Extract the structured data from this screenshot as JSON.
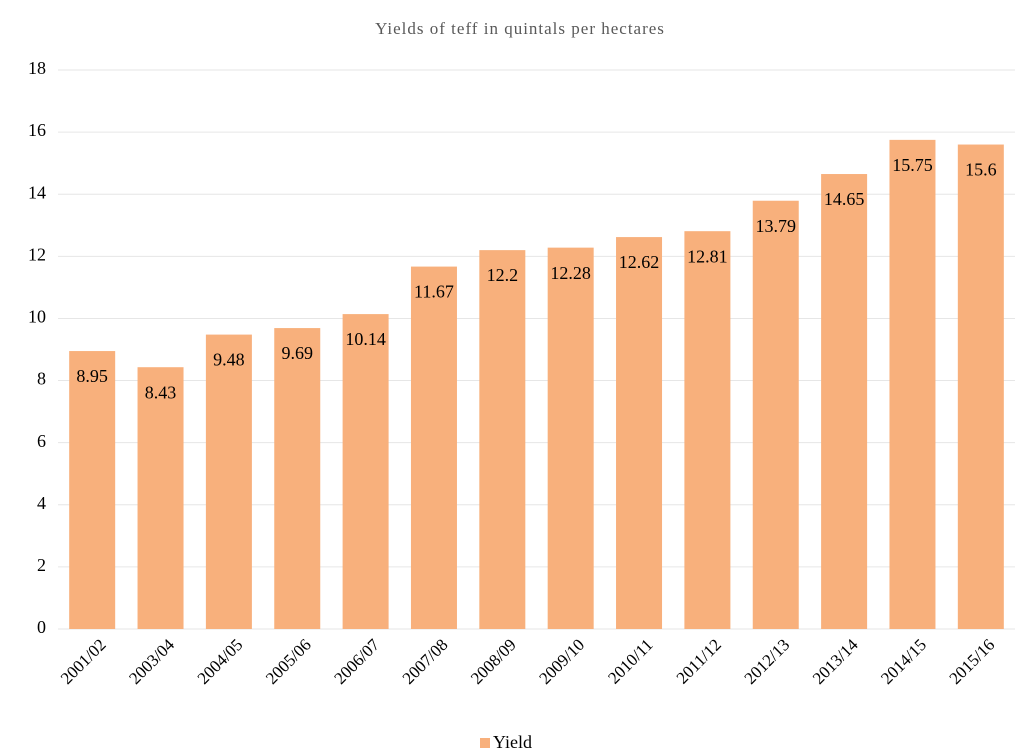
{
  "chart_data": {
    "type": "bar",
    "title": "Yields of teff  in quintals per hectares",
    "categories": [
      "2001/02",
      "2003/04",
      "2004/05",
      "2005/06",
      "2006/07",
      "2007/08",
      "2008/09",
      "2009/10",
      "2010/11",
      "2011/12",
      "2012/13",
      "2013/14",
      "2014/15",
      "2015/16"
    ],
    "series": [
      {
        "name": "Yield",
        "color": "#f8b07c",
        "values": [
          8.95,
          8.43,
          9.48,
          9.69,
          10.14,
          11.67,
          12.2,
          12.28,
          12.62,
          12.81,
          13.79,
          14.65,
          15.75,
          15.6
        ]
      }
    ],
    "ylim": [
      0,
      18
    ],
    "yticks": [
      0,
      2,
      4,
      6,
      8,
      10,
      12,
      14,
      16,
      18
    ],
    "grid": true,
    "legend": "bottom"
  }
}
